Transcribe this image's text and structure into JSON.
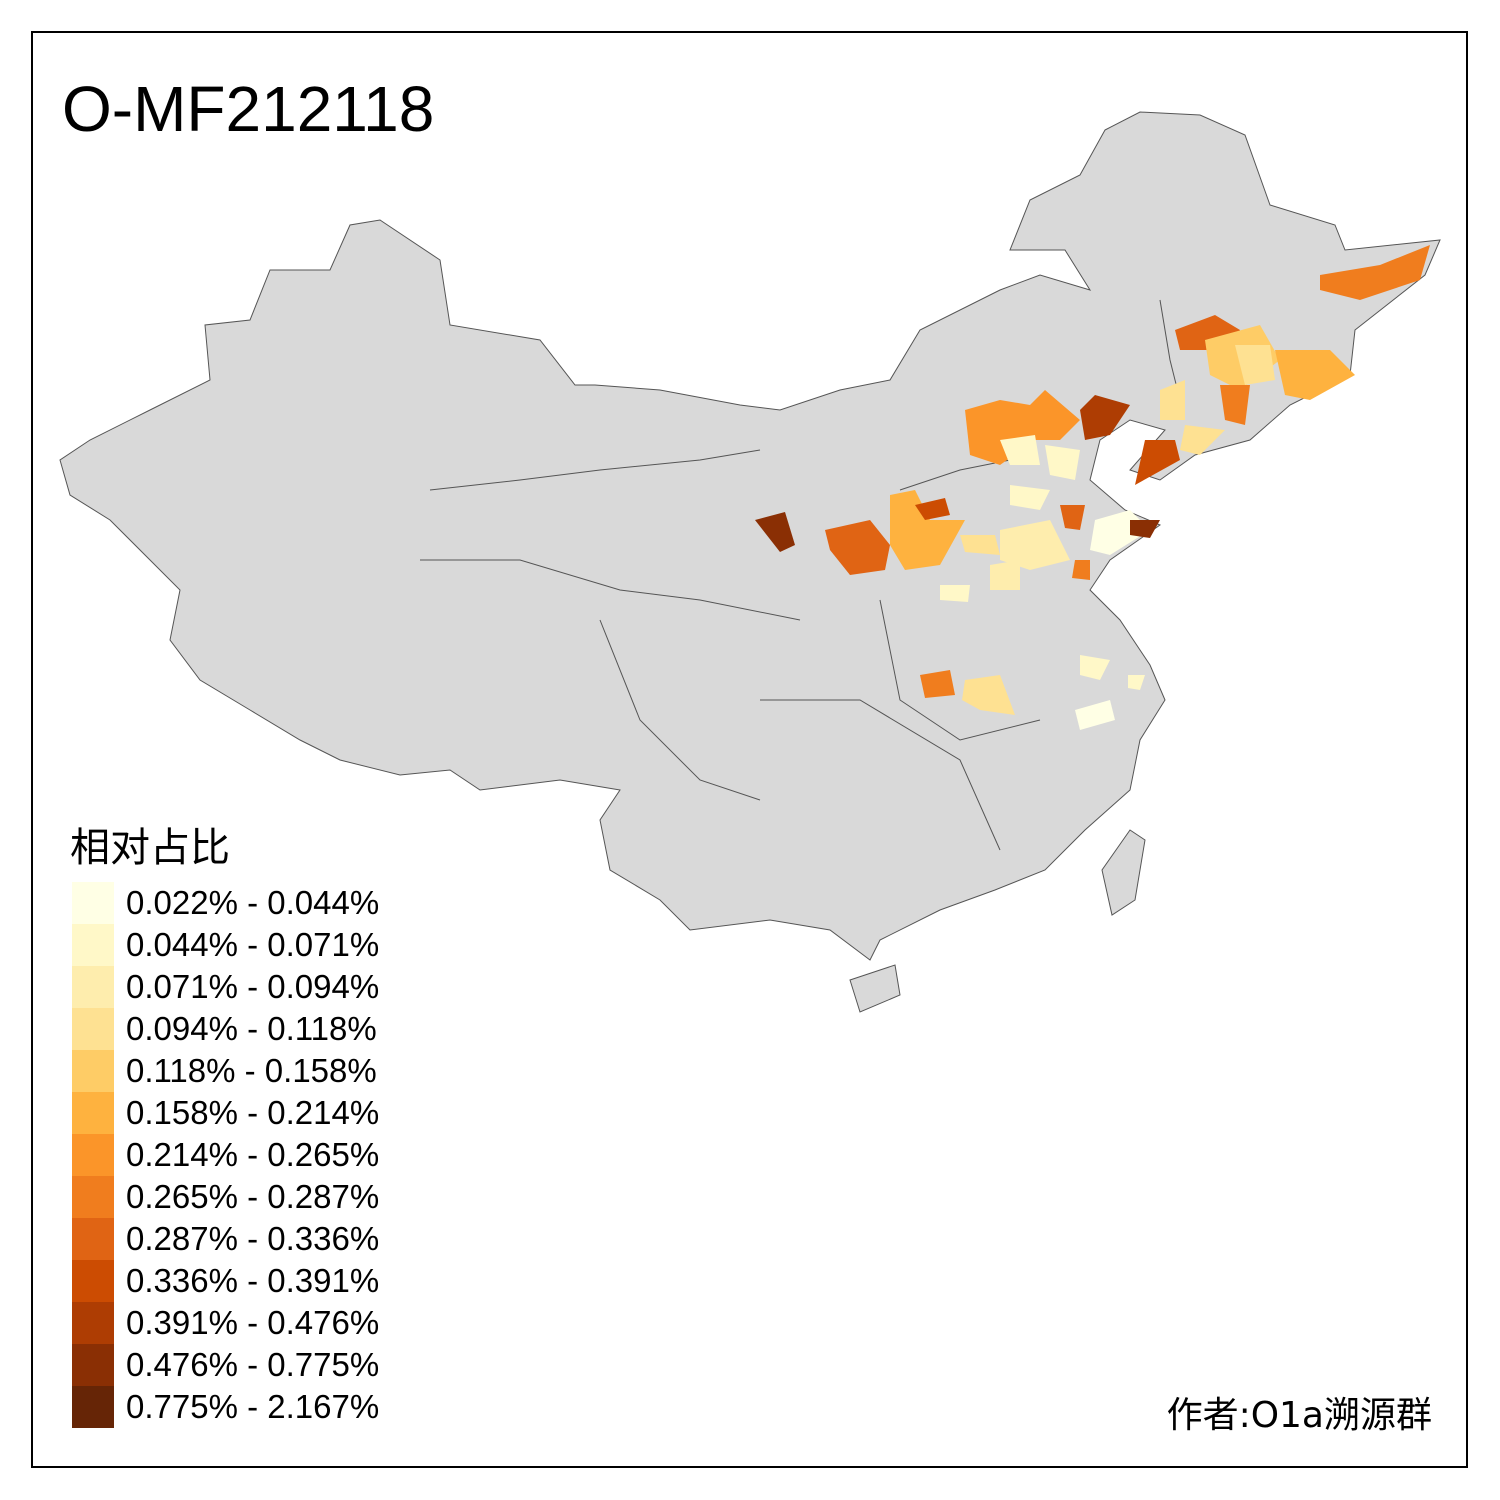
{
  "title": "O-MF212118",
  "legend": {
    "title": "相对占比",
    "items": [
      {
        "label": "0.022% - 0.044%",
        "color": "#FFFFE5"
      },
      {
        "label": "0.044% - 0.071%",
        "color": "#FFF8C8"
      },
      {
        "label": "0.071% - 0.094%",
        "color": "#FEEDAD"
      },
      {
        "label": "0.094% - 0.118%",
        "color": "#FEE192"
      },
      {
        "label": "0.118% - 0.158%",
        "color": "#FECC66"
      },
      {
        "label": "0.158% - 0.214%",
        "color": "#FEB23F"
      },
      {
        "label": "0.214% - 0.265%",
        "color": "#FB9529"
      },
      {
        "label": "0.265% - 0.287%",
        "color": "#F07D1E"
      },
      {
        "label": "0.287% - 0.336%",
        "color": "#E06414"
      },
      {
        "label": "0.336% - 0.391%",
        "color": "#CC4C02"
      },
      {
        "label": "0.391% - 0.476%",
        "color": "#AE3D03"
      },
      {
        "label": "0.476% - 0.775%",
        "color": "#8A2F04"
      },
      {
        "label": "0.775% - 2.167%",
        "color": "#662506"
      }
    ]
  },
  "map": {
    "base_color": "#D9D9D9",
    "border_color": "#555555"
  },
  "author": "作者:O1a溯源群"
}
